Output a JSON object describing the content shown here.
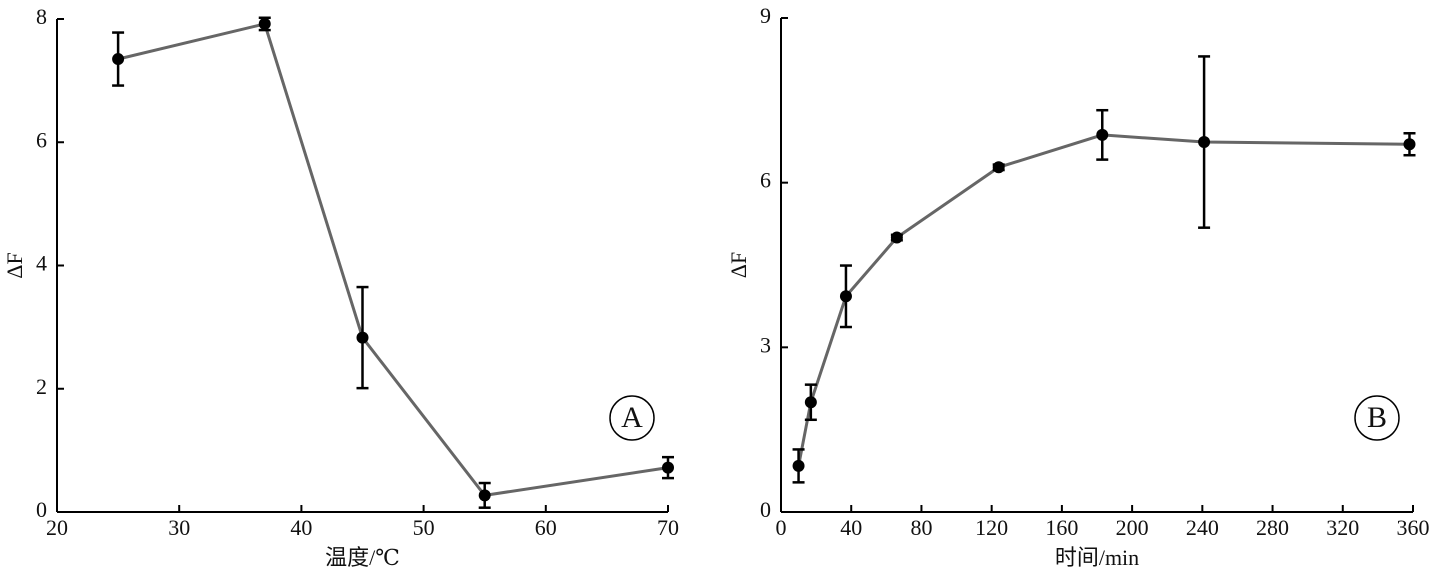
{
  "chart_data": [
    {
      "type": "line",
      "xlabel": "温度/℃",
      "ylabel": "ΔF",
      "annotation": "A",
      "x": [
        25,
        37,
        45,
        55,
        70
      ],
      "values": [
        7.35,
        7.92,
        2.83,
        0.27,
        0.72
      ],
      "errors": [
        0.43,
        0.1,
        0.82,
        0.2,
        0.17
      ],
      "color": "#666666",
      "xlim": [
        20,
        70
      ],
      "xticks": [
        20,
        30,
        40,
        50,
        60,
        70
      ],
      "ylim": [
        0,
        8
      ],
      "yticks": [
        0,
        2,
        4,
        6,
        8
      ]
    },
    {
      "type": "line",
      "xlabel": "时间/min",
      "ylabel": "ΔF",
      "annotation": "B",
      "x": [
        10,
        17,
        37,
        66,
        124,
        183,
        241,
        358
      ],
      "values": [
        0.84,
        2.0,
        3.93,
        5.0,
        6.28,
        6.87,
        6.74,
        6.7
      ],
      "errors": [
        0.3,
        0.32,
        0.56,
        0.05,
        0.05,
        0.45,
        1.56,
        0.2
      ],
      "color": "#666666",
      "xlim": [
        0,
        360
      ],
      "xticks": [
        0,
        40,
        80,
        120,
        160,
        200,
        240,
        280,
        320,
        360
      ],
      "ylim": [
        0,
        9
      ],
      "yticks": [
        0,
        3,
        6,
        9
      ]
    }
  ]
}
